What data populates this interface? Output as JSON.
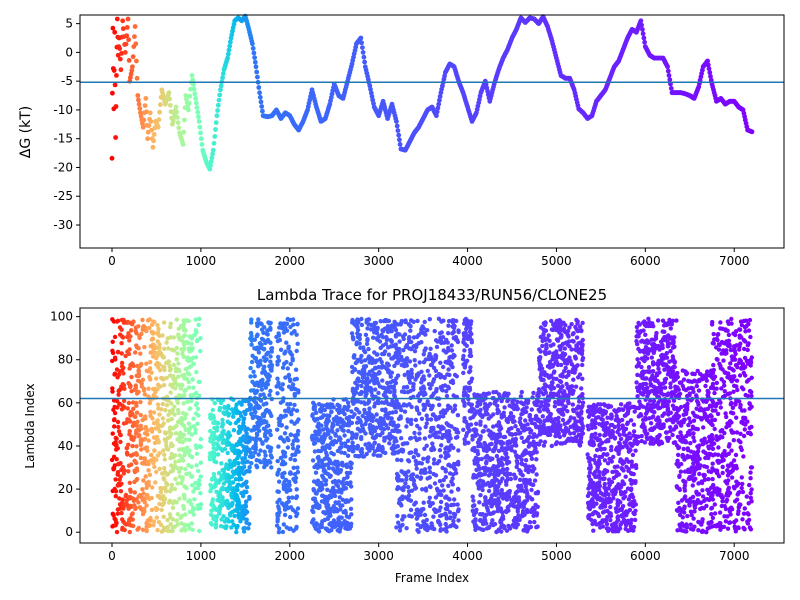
{
  "chart_data": [
    {
      "type": "scatter",
      "title": "",
      "xlabel": "",
      "ylabel": "ΔG (kT)",
      "xlim": [
        -360,
        7560
      ],
      "ylim": [
        -34,
        6.5
      ],
      "xticks": [
        0,
        1000,
        2000,
        3000,
        4000,
        5000,
        6000,
        7000
      ],
      "yticks": [
        5,
        0,
        -5,
        -10,
        -15,
        -20,
        -25,
        -30
      ],
      "hline": -5.2,
      "hline_color": "#1f77b4",
      "colormap": "rainbow (reversed over frame index)",
      "grid": false,
      "legend": "none",
      "series": [
        {
          "x": [
            0,
            10,
            20,
            30,
            40,
            50,
            60,
            70,
            80,
            100,
            120,
            150,
            180,
            200,
            230,
            260,
            290,
            320,
            350,
            380,
            400,
            430,
            460,
            490,
            520,
            560,
            600,
            640,
            680,
            720,
            760,
            800,
            830,
            860,
            900,
            940,
            980,
            1020,
            1060,
            1100,
            1140,
            1180,
            1220,
            1260,
            1300,
            1340,
            1380,
            1420,
            1460,
            1500,
            1540,
            1580,
            1620,
            1660,
            1700,
            1750,
            1800,
            1850,
            1900,
            1950,
            2000,
            2050,
            2100,
            2150,
            2200,
            2250,
            2300,
            2350,
            2400,
            2450,
            2500,
            2550,
            2600,
            2650,
            2700,
            2750,
            2800,
            2850,
            2900,
            2950,
            3000,
            3050,
            3100,
            3150,
            3200,
            3250,
            3300,
            3350,
            3400,
            3450,
            3500,
            3550,
            3600,
            3650,
            3700,
            3750,
            3800,
            3850,
            3900,
            3950,
            4000,
            4050,
            4100,
            4150,
            4200,
            4250,
            4300,
            4350,
            4400,
            4450,
            4500,
            4550,
            4600,
            4650,
            4700,
            4750,
            4800,
            4850,
            4900,
            4950,
            5000,
            5050,
            5100,
            5150,
            5200,
            5250,
            5300,
            5350,
            5400,
            5450,
            5500,
            5550,
            5600,
            5650,
            5700,
            5750,
            5800,
            5850,
            5900,
            5950,
            6000,
            6050,
            6100,
            6150,
            6200,
            6250,
            6300,
            6350,
            6400,
            6450,
            6500,
            6550,
            6600,
            6650,
            6700,
            6750,
            6800,
            6850,
            6900,
            6950,
            7000,
            7050,
            7100,
            7150,
            7200
          ],
          "y": [
            -18.4,
            4.2,
            -9.8,
            3.5,
            -14.8,
            -4,
            5.8,
            -0.5,
            2.5,
            -3,
            5.5,
            0,
            5.8,
            -5,
            -2.5,
            4.5,
            -7.5,
            -10.5,
            -13,
            -8,
            -15,
            -10.5,
            -16.5,
            -12,
            -13,
            -6.5,
            -9,
            -7,
            -12.5,
            -9.5,
            -14,
            -16,
            -7.5,
            -10,
            -4,
            -8,
            -12,
            -17,
            -19,
            -20.3,
            -17,
            -11,
            -6.5,
            -3,
            -1,
            2.5,
            5.5,
            6,
            5.5,
            6.3,
            4,
            1.5,
            -2.5,
            -7,
            -11,
            -11.2,
            -11,
            -10,
            -11.5,
            -10.5,
            -11,
            -12.5,
            -13.5,
            -12,
            -10,
            -6.5,
            -9.5,
            -12,
            -11.5,
            -9,
            -5.5,
            -7.5,
            -8,
            -5,
            -2,
            1.5,
            2.5,
            -2.5,
            -5.8,
            -9.5,
            -11,
            -8.5,
            -11.5,
            -9,
            -12,
            -16.8,
            -17,
            -15.5,
            -14,
            -13,
            -11.5,
            -10,
            -9.5,
            -11,
            -7,
            -3.5,
            -2,
            -2.5,
            -5,
            -7,
            -9.5,
            -12,
            -10.5,
            -7,
            -5,
            -8.5,
            -5.5,
            -3,
            -1,
            0.5,
            2.5,
            4,
            6,
            5.2,
            6,
            5.8,
            5,
            6.2,
            4.5,
            2,
            -1,
            -4,
            -4.5,
            -4.5,
            -6.5,
            -9.8,
            -10.5,
            -11.5,
            -11,
            -8.5,
            -7.5,
            -6.5,
            -4.5,
            -2.5,
            -1.5,
            0.5,
            2.5,
            4,
            3.5,
            5.5,
            1,
            -0.5,
            -1,
            -1,
            -1,
            -2.5,
            -7,
            -7,
            -7,
            -7.2,
            -7.5,
            -8,
            -6,
            -2.5,
            -1.5,
            -5.5,
            -8.5,
            -8,
            -9,
            -8.5,
            -8.5,
            -9.5,
            -10,
            -13.5,
            -13.8
          ]
        }
      ]
    },
    {
      "type": "scatter",
      "title": "Lambda Trace for PROJ18433/RUN56/CLONE25",
      "xlabel": "Frame Index",
      "ylabel": "Lambda Index",
      "xlim": [
        -360,
        7560
      ],
      "ylim": [
        -5,
        104
      ],
      "xticks": [
        0,
        1000,
        2000,
        3000,
        4000,
        5000,
        6000,
        7000
      ],
      "yticks": [
        0,
        20,
        40,
        60,
        80,
        100
      ],
      "hline": 62,
      "hline_color": "#1f77b4",
      "colormap": "rainbow (reversed over frame index)",
      "grid": false,
      "legend": "none",
      "segments": [
        {
          "x": [
            0,
            40
          ],
          "y_min": 0,
          "y_max": 99
        },
        {
          "x": [
            40,
            300
          ],
          "y_min": 0,
          "y_max": 99
        },
        {
          "x": [
            300,
            1000
          ],
          "y_min": 0,
          "y_max": 99
        },
        {
          "x": [
            1100,
            1550
          ],
          "y_min": 0,
          "y_max": 62
        },
        {
          "x": [
            1550,
            1800
          ],
          "y_min": 30,
          "y_max": 99
        },
        {
          "x": [
            1850,
            2100
          ],
          "y_min": 0,
          "y_max": 99
        },
        {
          "x": [
            2250,
            2700
          ],
          "y_min": 0,
          "y_max": 62
        },
        {
          "x": [
            2700,
            3200
          ],
          "y_min": 35,
          "y_max": 99
        },
        {
          "x": [
            3200,
            3900
          ],
          "y_min": 0,
          "y_max": 99
        },
        {
          "x": [
            3950,
            4050
          ],
          "y_min": 40,
          "y_max": 99
        },
        {
          "x": [
            4050,
            4800
          ],
          "y_min": 0,
          "y_max": 65
        },
        {
          "x": [
            4800,
            5300
          ],
          "y_min": 40,
          "y_max": 99
        },
        {
          "x": [
            5350,
            5900
          ],
          "y_min": 0,
          "y_max": 60
        },
        {
          "x": [
            5900,
            6350
          ],
          "y_min": 40,
          "y_max": 99
        },
        {
          "x": [
            6350,
            6750
          ],
          "y_min": 0,
          "y_max": 75
        },
        {
          "x": [
            6750,
            7200
          ],
          "y_min": 0,
          "y_max": 99
        }
      ]
    }
  ]
}
